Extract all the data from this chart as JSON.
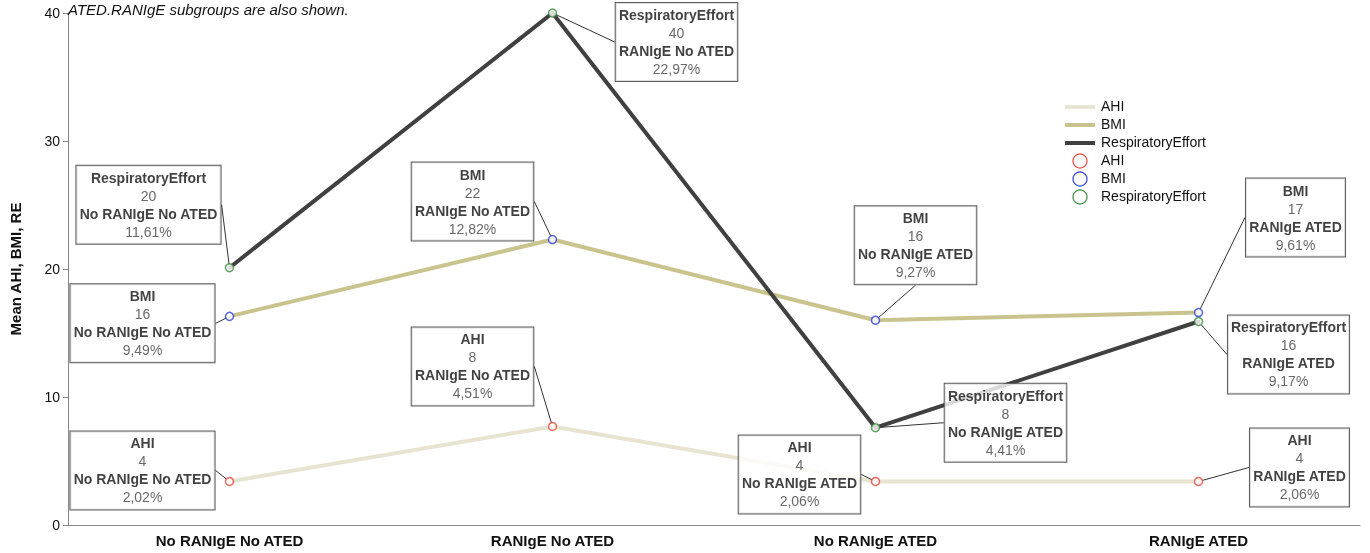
{
  "chart_data": {
    "type": "line",
    "ylabel": "Mean AHI, BMI, RE",
    "annotations": [
      "ATED.RANIgE subgroups are also shown."
    ],
    "categories": [
      "No RANIgE No ATED",
      "RANIgE No ATED",
      "No RANIgE ATED",
      "RANIgE ATED"
    ],
    "ylim": [
      0,
      40
    ],
    "yticks": [
      0,
      10,
      20,
      30,
      40
    ],
    "grid": false,
    "legend": "top right",
    "series": [
      {
        "name": "AHI",
        "type": "line",
        "color": "#e8e4d2",
        "marker": "none",
        "line_style": "solid",
        "values": [
          3.4,
          7.7,
          3.4,
          3.4
        ]
      },
      {
        "name": "BMI",
        "type": "line",
        "color": "#c9c48e",
        "marker": "none",
        "line_style": "solid",
        "values": [
          16.3,
          22.3,
          16.0,
          16.6
        ]
      },
      {
        "name": "RespiratoryEffort",
        "type": "line",
        "color": "#404040",
        "marker": "none",
        "line_style": "solid",
        "values": [
          20.1,
          40,
          7.6,
          15.9
        ]
      },
      {
        "name": "AHI",
        "type": "scatter",
        "color": "#e8473a",
        "marker": "circle",
        "x": [
          "No RANIgE No ATED",
          "RANIgE No ATED",
          "No RANIgE ATED",
          "RANIgE ATED"
        ],
        "values": [
          3.4,
          7.7,
          3.4,
          3.4
        ],
        "value_labels": [
          "AHI\n4\nNo RANIgE No ATED\n2,02%",
          "AHI\n8\nRANIgE No ATED\n4,51%",
          "AHI\n4\nNo RANIgE ATED\n2,06%",
          "AHI\n4\nRANIgE ATED\n2,06%"
        ]
      },
      {
        "name": "BMI",
        "type": "scatter",
        "color": "#2a3fe0",
        "marker": "circle",
        "x": [
          "No RANIgE No ATED",
          "RANIgE No ATED",
          "No RANIgE ATED",
          "RANIgE ATED"
        ],
        "values": [
          16.3,
          22.3,
          16.0,
          16.6
        ],
        "value_labels": [
          "BMI\n16\nNo RANIgE No ATED\n9,49%",
          "BMI\n22\nRANIgE No ATED\n12,82%",
          "BMI\n16\nNo RANIgE ATED\n9,27%",
          "BMI\n17\nRANIgE ATED\n9,61%"
        ]
      },
      {
        "name": "RespiratoryEffort",
        "type": "scatter",
        "color": "#3a8a3a",
        "marker": "circle",
        "x": [
          "No RANIgE No ATED",
          "RANIgE No ATED",
          "No RANIgE ATED",
          "RANIgE ATED"
        ],
        "values": [
          20.1,
          40,
          7.6,
          15.9
        ],
        "value_labels": [
          "RespiratoryEffort\n20\nNo RANIgE No ATED\n11,61%",
          "RespiratoryEffort\n40\nRANIgE No ATED\n22,97%",
          "RespiratoryEffort\n8\nNo RANIgE ATED\n4,41%",
          "RespiratoryEffort\n16\nRANIgE ATED\n9,17%"
        ]
      }
    ]
  }
}
